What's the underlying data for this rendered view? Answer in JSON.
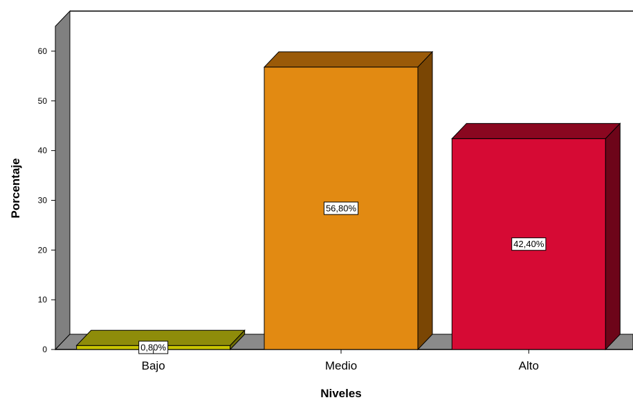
{
  "chart_data": {
    "type": "bar",
    "categories": [
      "Bajo",
      "Medio",
      "Alto"
    ],
    "values": [
      0.8,
      56.8,
      42.4
    ],
    "data_labels": [
      "0,80%",
      "56,80%",
      "42,40%"
    ],
    "xlabel": "Niveles",
    "ylabel": "Porcentaje",
    "ylim": [
      0,
      65
    ],
    "yticks": [
      "0",
      "10",
      "20",
      "30",
      "40",
      "50",
      "60"
    ],
    "grid": false,
    "legend": "none",
    "style": "3d",
    "bar_colors": [
      {
        "front": "#c8c400",
        "top": "#8e8c0a",
        "side": "#6f6d05"
      },
      {
        "front": "#e28a12",
        "top": "#9a5a08",
        "side": "#7a4604"
      },
      {
        "front": "#d60a34",
        "top": "#8a0720",
        "side": "#6d0519"
      }
    ],
    "wall_color": "#808080",
    "floor_color": "#8a8a8a"
  }
}
